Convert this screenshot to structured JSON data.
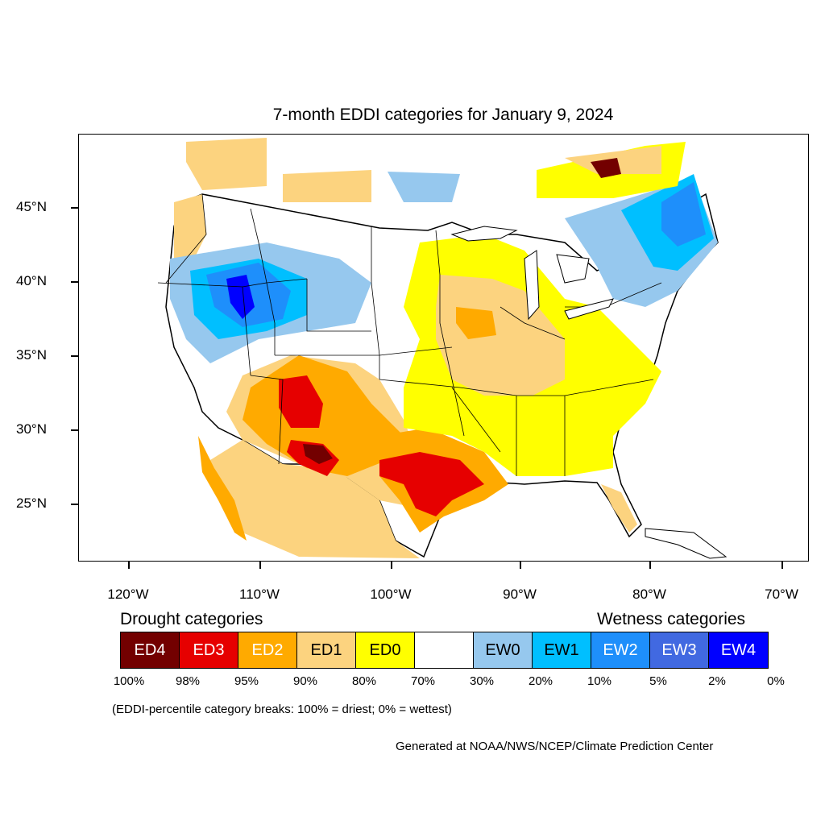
{
  "title": "7-month EDDI categories for January 9, 2024",
  "lat_labels": [
    "45°N",
    "40°N",
    "35°N",
    "30°N",
    "25°N"
  ],
  "lon_labels": [
    "120°W",
    "110°W",
    "100°W",
    "90°W",
    "80°W",
    "70°W"
  ],
  "legend": {
    "drought_heading": "Drought categories",
    "wetness_heading": "Wetness categories",
    "categories": [
      {
        "label": "ED4",
        "color": "#730000",
        "text_color": "#ffffff"
      },
      {
        "label": "ED3",
        "color": "#e60000",
        "text_color": "#ffffff"
      },
      {
        "label": "ED2",
        "color": "#ffaa00",
        "text_color": "#ffffff"
      },
      {
        "label": "ED1",
        "color": "#fcd37f",
        "text_color": "#000000"
      },
      {
        "label": "ED0",
        "color": "#ffff00",
        "text_color": "#000000"
      },
      {
        "label": "",
        "color": "#ffffff",
        "text_color": "#000000"
      },
      {
        "label": "EW0",
        "color": "#96c8ee",
        "text_color": "#000000"
      },
      {
        "label": "EW1",
        "color": "#00bfff",
        "text_color": "#000000"
      },
      {
        "label": "EW2",
        "color": "#1e8ffb",
        "text_color": "#ffffff"
      },
      {
        "label": "EW3",
        "color": "#4169e1",
        "text_color": "#ffffff"
      },
      {
        "label": "EW4",
        "color": "#0000ff",
        "text_color": "#ffffff"
      }
    ],
    "breaks": [
      "100%",
      "98%",
      "95%",
      "90%",
      "80%",
      "70%",
      "30%",
      "20%",
      "10%",
      "5%",
      "2%",
      "0%"
    ]
  },
  "note": "(EDDI-percentile category breaks: 100% = driest; 0% = wettest)",
  "credit": "Generated at NOAA/NWS/NCEP/Climate Prediction Center"
}
